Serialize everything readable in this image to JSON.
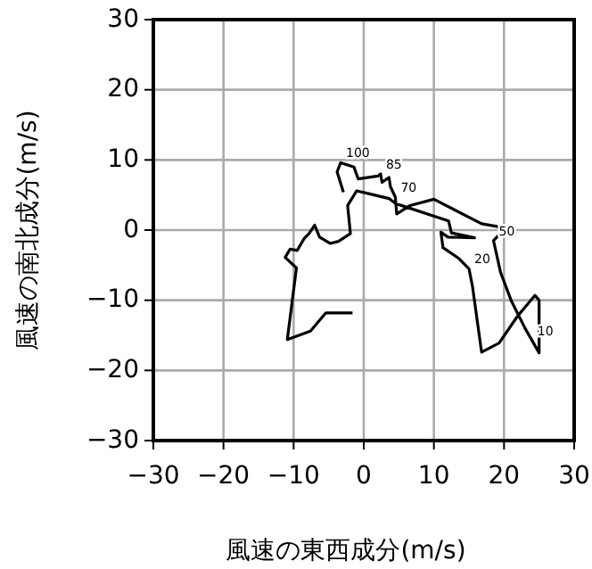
{
  "chart_data": {
    "type": "line",
    "xlabel": "風速の東西成分(m/s)",
    "ylabel": "風速の南北成分(m/s)",
    "xlim": [
      -30,
      30
    ],
    "ylim": [
      -30,
      30
    ],
    "xticks": [
      {
        "value": -30,
        "label": "−30"
      },
      {
        "value": -20,
        "label": "−20"
      },
      {
        "value": -10,
        "label": "−10"
      },
      0,
      10,
      20,
      30
    ],
    "yticks": [
      {
        "value": -30,
        "label": "−30"
      },
      {
        "value": -20,
        "label": "−20"
      },
      {
        "value": -10,
        "label": "−10"
      },
      0,
      10,
      20,
      30
    ],
    "grid": true,
    "series": [
      {
        "color": "#000000",
        "x": [
          -2.9,
          -3.8,
          -3.3,
          -1.4,
          -0.8,
          2.0,
          2.4,
          2.6,
          3.6,
          3.8,
          4.5,
          4.7,
          6.6,
          10,
          16.8,
          20.2,
          18.5,
          19.5,
          21,
          23,
          25,
          25,
          24.4,
          21.9,
          19.3,
          16.8,
          15.5,
          15,
          13.5,
          11.3,
          11,
          12,
          15.8,
          12.5,
          12.1,
          4.5,
          3.6,
          0.7,
          -1,
          -2.3,
          -1.9,
          -3.6,
          -4.8,
          -6.3,
          -7.0,
          -7.8,
          -8.5,
          -9.5,
          -10.5,
          -11.2,
          -9.6,
          -10.3,
          -10.9,
          -7.6,
          -5.4,
          -1.6
        ],
        "values": [
          5.4,
          8.3,
          9.6,
          9.0,
          7.3,
          7.7,
          8.0,
          6.8,
          7.5,
          6.2,
          4.7,
          2.3,
          3.5,
          4.4,
          0.9,
          0.3,
          -1.5,
          -6,
          -10,
          -14,
          -17.5,
          -10,
          -9.3,
          -12.3,
          -16.1,
          -17.4,
          -8,
          -5.5,
          -4,
          -2.5,
          -0.3,
          -1,
          -1.1,
          -0.4,
          1.3,
          3.8,
          4.5,
          5.2,
          5.6,
          3.5,
          -0.5,
          -1.6,
          -1.9,
          -1.0,
          0.7,
          -0.5,
          -1.2,
          -2.9,
          -2.7,
          -3.9,
          -5.4,
          -10.9,
          -15.6,
          -14.4,
          -11.8,
          -11.8
        ]
      }
    ],
    "annotations": [
      {
        "text": "100",
        "x": -3.3,
        "y": 9.6
      },
      {
        "text": "85",
        "x": 2.4,
        "y": 8.0
      },
      {
        "text": "70",
        "x": 4.5,
        "y": 4.7
      },
      {
        "text": "50",
        "x": 18.5,
        "y": -1.5
      },
      {
        "text": "20",
        "x": 15,
        "y": -5.5
      },
      {
        "text": "10",
        "x": 24,
        "y": -15.75
      }
    ]
  }
}
